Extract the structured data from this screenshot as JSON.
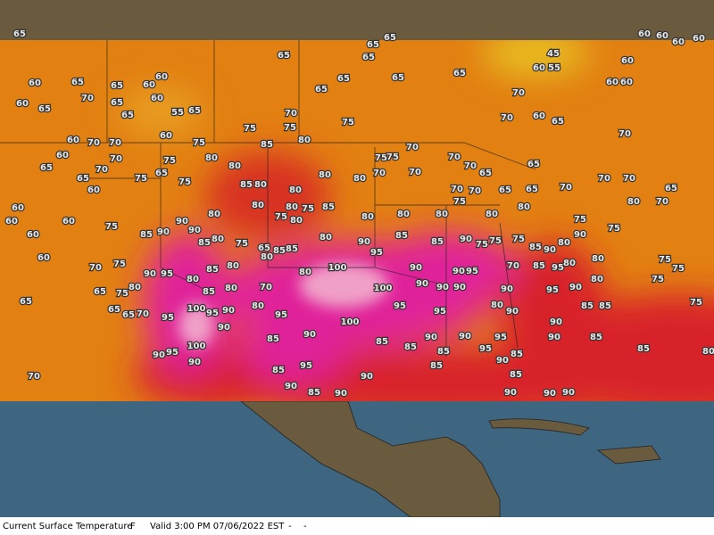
{
  "map": {
    "temperature_labels": [
      65,
      65,
      65,
      65,
      65,
      60,
      60,
      65,
      65,
      60,
      70,
      60,
      65,
      60,
      65,
      65,
      55,
      65,
      70,
      65,
      65,
      65,
      65,
      70,
      70,
      65,
      60,
      55,
      45,
      60,
      60,
      60,
      60,
      60,
      60,
      60,
      60,
      75,
      75,
      75,
      60,
      60,
      70,
      70,
      75,
      85,
      80,
      70,
      75,
      75,
      70,
      60,
      70,
      75,
      80,
      80,
      70,
      65,
      75,
      75,
      65,
      65,
      60,
      85,
      80,
      80,
      80,
      70,
      70,
      70,
      70,
      65,
      65,
      70,
      70,
      75,
      65,
      65,
      70,
      70,
      70,
      65,
      70,
      80,
      60,
      60,
      80,
      80,
      75,
      75,
      80,
      85,
      80,
      80,
      80,
      80,
      80,
      75,
      75,
      60,
      75,
      90,
      80,
      80,
      60,
      85,
      90,
      90,
      85,
      80,
      75,
      65,
      85,
      85,
      80,
      90,
      85,
      85,
      90,
      75,
      75,
      75,
      85,
      90,
      80,
      90,
      60,
      70,
      75,
      90,
      95,
      85,
      80,
      80,
      80,
      100,
      95,
      90,
      90,
      95,
      70,
      85,
      95,
      80,
      80,
      75,
      75,
      75,
      80,
      90,
      65,
      65,
      75,
      80,
      80,
      85,
      80,
      70,
      100,
      90,
      90,
      90,
      90,
      95,
      75,
      65,
      65,
      70,
      95,
      100,
      95,
      90,
      80,
      95,
      100,
      95,
      95,
      80,
      90,
      90,
      85,
      85,
      90,
      90,
      85,
      85,
      90,
      90,
      95,
      90,
      85,
      100,
      90,
      95,
      85,
      85,
      95,
      85,
      90,
      85,
      90,
      85,
      80,
      70,
      85,
      95,
      90,
      85,
      90,
      90,
      85,
      90,
      90,
      90
    ]
  },
  "footer": {
    "items": [
      "Current Surface Temperature",
      "F",
      "Valid 3:00 PM 07/06/2022 EST",
      "-",
      "-"
    ]
  }
}
